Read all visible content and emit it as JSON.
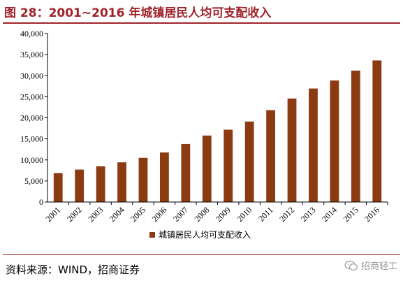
{
  "header": {
    "title": "图 28：2001~2016 年城镇居民人均可支配收入"
  },
  "footer": {
    "source": "资料来源：WIND，招商证券",
    "watermark": "招商轻工",
    "watermark_icon": "wechat-icon"
  },
  "colors": {
    "bar": "#8B3A12",
    "title": "#A0242C"
  },
  "chart_data": {
    "type": "bar",
    "title": "",
    "xlabel": "",
    "ylabel": "",
    "ylim": [
      0,
      40000
    ],
    "yticks": [
      0,
      5000,
      10000,
      15000,
      20000,
      25000,
      30000,
      35000,
      40000
    ],
    "ytick_labels": [
      "0",
      "5,000",
      "10,000",
      "15,000",
      "20,000",
      "25,000",
      "30,000",
      "35,000",
      "40,000"
    ],
    "categories": [
      "2001",
      "2002",
      "2003",
      "2004",
      "2005",
      "2006",
      "2007",
      "2008",
      "2009",
      "2010",
      "2011",
      "2012",
      "2013",
      "2014",
      "2015",
      "2016"
    ],
    "series": [
      {
        "name": "城镇居民人均可支配收入",
        "values": [
          6860,
          7703,
          8472,
          9422,
          10493,
          11759,
          13786,
          15781,
          17175,
          19109,
          21810,
          24565,
          26955,
          28844,
          31195,
          33616
        ]
      }
    ],
    "grid": false,
    "legend": "bottom"
  }
}
